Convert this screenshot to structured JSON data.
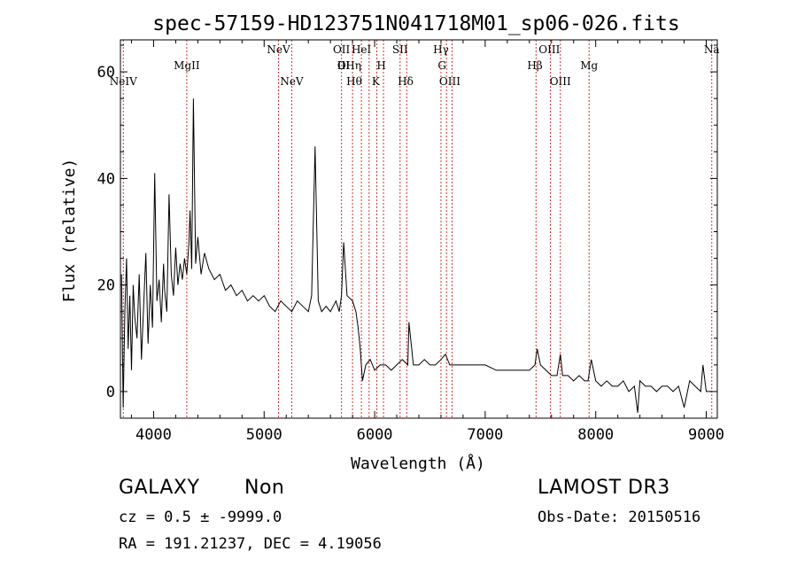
{
  "chart_data": {
    "type": "line",
    "title": "spec-57159-HD123751N041718M01_sp06-026.fits",
    "xlabel": "Wavelength (Å)",
    "ylabel": "Flux (relative)",
    "xlim": [
      3700,
      9100
    ],
    "ylim": [
      -5,
      66
    ],
    "x_ticks": [
      4000,
      5000,
      6000,
      7000,
      8000,
      9000
    ],
    "y_ticks": [
      0,
      20,
      40,
      60
    ],
    "grid": false,
    "line_color": "#000000",
    "marker_color": "#cc3333",
    "series": [
      {
        "x": [
          3710,
          3725,
          3740,
          3755,
          3770,
          3785,
          3800,
          3815,
          3830,
          3850,
          3870,
          3890,
          3910,
          3930,
          3950,
          3970,
          3990,
          4010,
          4030,
          4050,
          4070,
          4090,
          4100,
          4120,
          4140,
          4160,
          4180,
          4200,
          4220,
          4240,
          4260,
          4280,
          4300,
          4320,
          4330,
          4345,
          4360,
          4380,
          4400,
          4430,
          4460,
          4500,
          4550,
          4600,
          4650,
          4700,
          4750,
          4800,
          4850,
          4900,
          4950,
          5000,
          5050,
          5100,
          5150,
          5200,
          5250,
          5300,
          5350,
          5400,
          5430,
          5461,
          5490,
          5520,
          5560,
          5600,
          5650,
          5680,
          5700,
          5720,
          5750,
          5800,
          5830,
          5850,
          5870,
          5890,
          5920,
          5960,
          6000,
          6050,
          6100,
          6150,
          6200,
          6250,
          6300,
          6310,
          6350,
          6400,
          6450,
          6500,
          6550,
          6600,
          6640,
          6680,
          6720,
          6800,
          6900,
          7000,
          7100,
          7200,
          7300,
          7400,
          7450,
          7470,
          7500,
          7550,
          7600,
          7650,
          7680,
          7700,
          7750,
          7800,
          7850,
          7900,
          7930,
          7960,
          8000,
          8050,
          8100,
          8150,
          8200,
          8250,
          8300,
          8350,
          8380,
          8400,
          8450,
          8500,
          8550,
          8600,
          8650,
          8700,
          8750,
          8800,
          8850,
          8900,
          8950,
          8970,
          9000,
          9050
        ],
        "values": [
          22,
          -3,
          15,
          25,
          8,
          18,
          4,
          20,
          14,
          10,
          22,
          6,
          16,
          26,
          9,
          20,
          12,
          41,
          17,
          21,
          13,
          24,
          19,
          15,
          37,
          22,
          18,
          27,
          20,
          24,
          21,
          25,
          22,
          28,
          34,
          23,
          55,
          24,
          29,
          22,
          26,
          23,
          21,
          22,
          19,
          20,
          18,
          19,
          17,
          18,
          17,
          18,
          16,
          15,
          17,
          16,
          15,
          17,
          16,
          15,
          18,
          46,
          17,
          15,
          16,
          15,
          17,
          15,
          18,
          28,
          18,
          17,
          15,
          12,
          8,
          2,
          5,
          6,
          4,
          5,
          5,
          4,
          5,
          6,
          5,
          13,
          5,
          5,
          6,
          5,
          5,
          6,
          7,
          5,
          5,
          5,
          5,
          5,
          4,
          4,
          4,
          4,
          5,
          8,
          5,
          4,
          3,
          3,
          7,
          3,
          3,
          2,
          3,
          2,
          2,
          6,
          2,
          1,
          2,
          1,
          1,
          2,
          0,
          1,
          -4,
          2,
          1,
          1,
          0,
          1,
          1,
          0,
          1,
          -3,
          2,
          1,
          0,
          5,
          0,
          0
        ]
      }
    ],
    "line_markers": [
      {
        "label": "NeIV",
        "x": 3726,
        "row": 3
      },
      {
        "label": "MgII",
        "x": 4300,
        "row": 2
      },
      {
        "label": "NeV",
        "x": 5130,
        "row": 1
      },
      {
        "label": "NeV",
        "x": 5250,
        "row": 3
      },
      {
        "label": "OII",
        "x": 5700,
        "row": 1
      },
      {
        "label": "OI",
        "x": 5720,
        "row": 2
      },
      {
        "label": "IIHη",
        "x": 5770,
        "row": 2
      },
      {
        "label": "Hθ",
        "x": 5815,
        "row": 3
      },
      {
        "label": "HeI",
        "x": 5880,
        "row": 1
      },
      {
        "label": "H",
        "x": 6060,
        "row": 2
      },
      {
        "label": "K",
        "x": 6010,
        "row": 3
      },
      {
        "label": "SII",
        "x": 6230,
        "row": 1
      },
      {
        "label": "Hδ",
        "x": 6280,
        "row": 3
      },
      {
        "label": "Hγ",
        "x": 6600,
        "row": 1
      },
      {
        "label": "G",
        "x": 6610,
        "row": 2
      },
      {
        "label": "OIII",
        "x": 6680,
        "row": 3
      },
      {
        "label": "Hβ",
        "x": 7450,
        "row": 2
      },
      {
        "label": "OIII",
        "x": 7580,
        "row": 1
      },
      {
        "label": "OIII",
        "x": 7680,
        "row": 3
      },
      {
        "label": "Mg",
        "x": 7940,
        "row": 2
      },
      {
        "label": "Na",
        "x": 9050,
        "row": 1
      }
    ],
    "marker_lines_x": [
      3726,
      4300,
      5130,
      5250,
      5700,
      5800,
      5880,
      5950,
      6020,
      6080,
      6230,
      6290,
      6600,
      6650,
      6700,
      7460,
      7590,
      7680,
      7940,
      9050
    ]
  },
  "info": {
    "object_class": "GALAXY",
    "subclass": "Non",
    "survey": "LAMOST DR3",
    "cz": "cz = 0.5 ± -9999.0",
    "obs_date": "Obs-Date: 20150516",
    "radec": "RA = 191.21237, DEC =   4.19056"
  }
}
